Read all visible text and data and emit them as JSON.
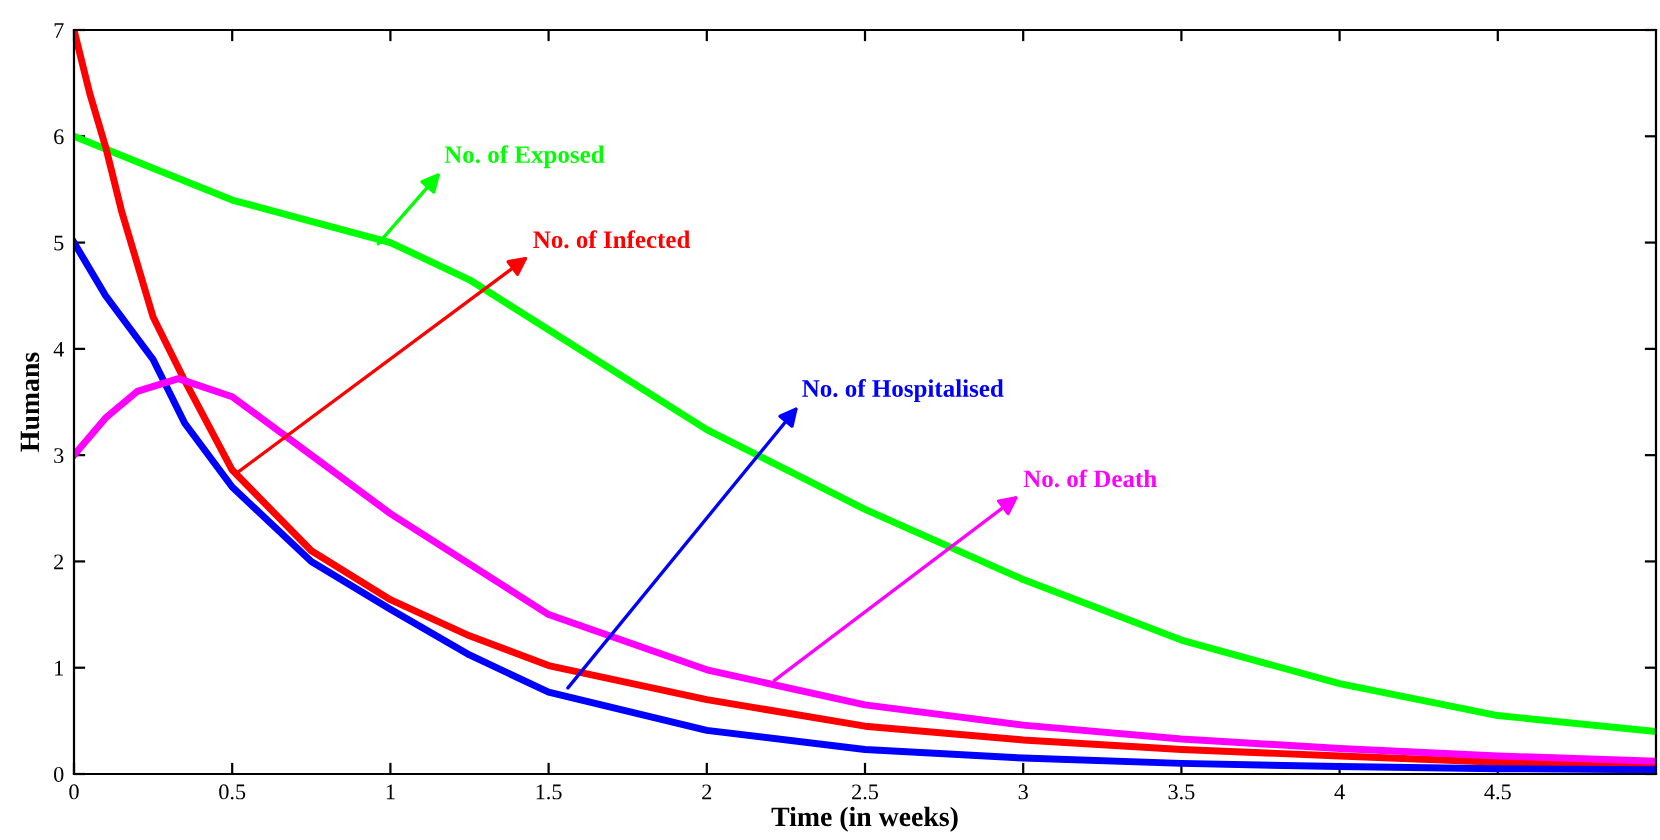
{
  "chart_data": {
    "type": "line",
    "xlabel": "Time (in weeks)",
    "ylabel": "Humans",
    "xlim": [
      0,
      5
    ],
    "ylim": [
      0,
      7
    ],
    "xticks": [
      0,
      0.5,
      1,
      1.5,
      2,
      2.5,
      3,
      3.5,
      4,
      4.5
    ],
    "yticks": [
      0,
      1,
      2,
      3,
      4,
      5,
      6,
      7
    ],
    "grid": false,
    "marker": "none",
    "line_style": "solid",
    "series": [
      {
        "color": "#00ff00",
        "x": [
          0,
          0.25,
          0.5,
          0.75,
          1,
          1.25,
          1.5,
          2,
          2.5,
          3,
          3.5,
          4,
          4.5,
          5
        ],
        "values": [
          6,
          5.7,
          5.4,
          5.2,
          5.0,
          4.65,
          4.18,
          3.24,
          2.49,
          1.83,
          1.26,
          0.85,
          0.55,
          0.4
        ]
      },
      {
        "color": "#ff0000",
        "x": [
          0,
          0.05,
          0.1,
          0.15,
          0.25,
          0.35,
          0.5,
          0.75,
          1,
          1.25,
          1.5,
          2,
          2.5,
          3,
          3.5,
          4,
          4.5,
          5
        ],
        "values": [
          7,
          6.4,
          5.9,
          5.3,
          4.3,
          3.7,
          2.86,
          2.1,
          1.64,
          1.3,
          1.02,
          0.7,
          0.45,
          0.32,
          0.23,
          0.17,
          0.11,
          0.08
        ]
      },
      {
        "color": "#0000ff",
        "x": [
          0,
          0.1,
          0.25,
          0.35,
          0.5,
          0.75,
          1,
          1.25,
          1.5,
          2,
          2.5,
          3,
          3.5,
          4,
          4.5,
          5
        ],
        "values": [
          5,
          4.5,
          3.9,
          3.3,
          2.7,
          2.0,
          1.55,
          1.12,
          0.77,
          0.41,
          0.23,
          0.15,
          0.1,
          0.07,
          0.05,
          0.04
        ]
      },
      {
        "color": "#ff00ff",
        "x": [
          0,
          0.1,
          0.2,
          0.33,
          0.5,
          0.75,
          1,
          1.5,
          2,
          2.5,
          3,
          3.5,
          4,
          4.5,
          5
        ],
        "values": [
          3,
          3.35,
          3.6,
          3.72,
          3.55,
          3.0,
          2.45,
          1.5,
          0.98,
          0.65,
          0.46,
          0.33,
          0.24,
          0.17,
          0.12
        ]
      }
    ],
    "annotations": [
      {
        "text": "No. of Exposed",
        "x": 0.95,
        "y": 4.95
      },
      {
        "text": "No. of Infected",
        "x": 0.5,
        "y": 2.8
      },
      {
        "text": "No. of Hospitalised",
        "x": 1.55,
        "y": 0.77
      },
      {
        "text": "No. of Death",
        "x": 2.2,
        "y": 0.85
      }
    ]
  }
}
